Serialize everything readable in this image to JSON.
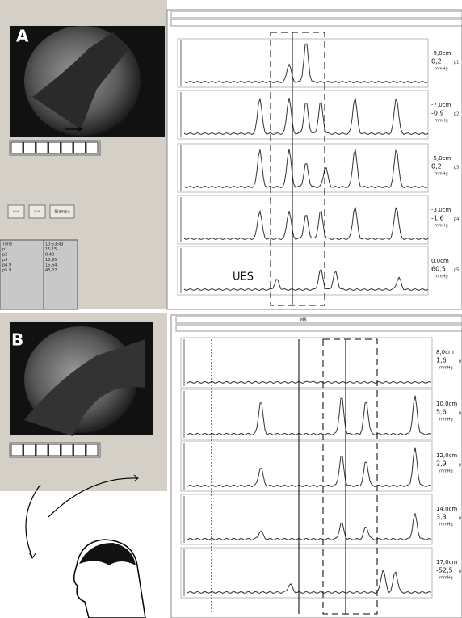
{
  "panels": [
    {
      "label": "A",
      "buttons": [
        "<<",
        ">>",
        "Stampa"
      ],
      "table": [
        [
          "Time",
          "10:53:43"
        ],
        [
          "p1",
          "15,15"
        ],
        [
          "p2",
          "8,48"
        ],
        [
          "p3",
          "18,95"
        ],
        [
          "p4.9",
          "15,64"
        ],
        [
          "p5.9",
          "43,22"
        ]
      ],
      "annotation": "UES",
      "channels": [
        {
          "position": "-9,0cm",
          "value": "0,2",
          "probe": "p1",
          "unit": "mmHg"
        },
        {
          "position": "-7,0cm",
          "value": "-0,9",
          "probe": "p2",
          "unit": "mmHg"
        },
        {
          "position": "-5,0cm",
          "value": "0,2",
          "probe": "p3",
          "unit": "mmHg"
        },
        {
          "position": "-3,0cm",
          "value": "-1,6",
          "probe": "p4",
          "unit": "mmHg"
        },
        {
          "position": "0,0cm",
          "value": "60,5",
          "probe": "p5",
          "unit": "mmHg"
        }
      ]
    },
    {
      "label": "B",
      "toolbar": "MR",
      "channels": [
        {
          "position": "8,0cm",
          "value": "1,6",
          "probe": "p",
          "unit": "mmHg"
        },
        {
          "position": "10,0cm",
          "value": "5,6",
          "probe": "p",
          "unit": "mmHg"
        },
        {
          "position": "12,0cm",
          "value": "2,9",
          "probe": "p",
          "unit": "mmHg"
        },
        {
          "position": "14,0cm",
          "value": "3,3",
          "probe": "p",
          "unit": "mmHg"
        },
        {
          "position": "17,0cm",
          "value": "-52,5",
          "probe": "p",
          "unit": "mmHg"
        }
      ]
    }
  ]
}
